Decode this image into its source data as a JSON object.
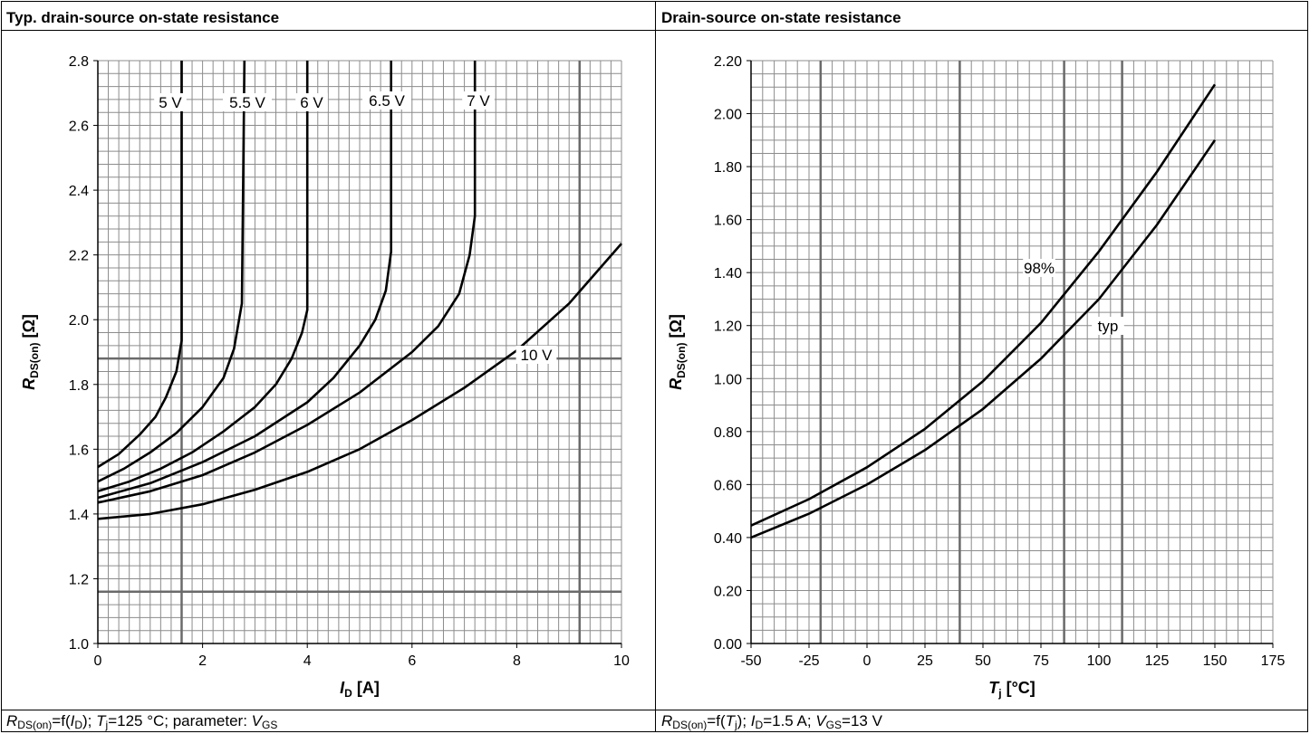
{
  "panels": [
    {
      "title": "Typ. drain-source on-state resistance",
      "caption": {
        "r_sym": "R",
        "r_sub": "DS(on)",
        "f_open": "=f(",
        "arg_sym": "I",
        "arg_sub": "D",
        "rest1": "); ",
        "t_sym": "T",
        "t_sub": "j",
        "rest2": "=125 °C; parameter: ",
        "v_sym": "V",
        "v_sub": "GS"
      }
    },
    {
      "title": "Drain-source on-state resistance",
      "caption": {
        "r_sym": "R",
        "r_sub": "DS(on)",
        "f_open": "=f(",
        "arg_sym": "T",
        "arg_sub": "j",
        "rest1": "); ",
        "i_sym": "I",
        "i_sub": "D",
        "rest2": "=1.5 A; ",
        "v_sym": "V",
        "v_sub": "GS",
        "rest3": "=13 V"
      }
    }
  ],
  "chart_data": [
    {
      "type": "line",
      "title": "Typ. drain-source on-state resistance",
      "xlabel": {
        "sym": "I",
        "sub": "D",
        "unit": " [A]"
      },
      "ylabel": {
        "sym": "R",
        "sub": "DS(on)",
        "unit": " [Ω]"
      },
      "xlim": [
        0,
        10
      ],
      "ylim": [
        1.0,
        2.8
      ],
      "x_ticks": [
        0,
        2,
        4,
        6,
        8,
        10
      ],
      "y_ticks": [
        "1.0",
        "1.2",
        "1.4",
        "1.6",
        "1.8",
        "2.0",
        "2.2",
        "2.4",
        "2.6",
        "2.8"
      ],
      "grid": true,
      "series": [
        {
          "name": "5 V",
          "points": [
            [
              0,
              1.545
            ],
            [
              0.4,
              1.585
            ],
            [
              0.8,
              1.645
            ],
            [
              1.1,
              1.7
            ],
            [
              1.3,
              1.76
            ],
            [
              1.5,
              1.84
            ],
            [
              1.6,
              1.935
            ],
            [
              1.6,
              2.8
            ]
          ]
        },
        {
          "name": "5.5 V",
          "points": [
            [
              0,
              1.5
            ],
            [
              0.5,
              1.54
            ],
            [
              1.0,
              1.59
            ],
            [
              1.5,
              1.65
            ],
            [
              2.0,
              1.73
            ],
            [
              2.4,
              1.82
            ],
            [
              2.6,
              1.91
            ],
            [
              2.75,
              2.05
            ],
            [
              2.8,
              2.8
            ]
          ]
        },
        {
          "name": "6 V",
          "points": [
            [
              0,
              1.47
            ],
            [
              0.6,
              1.5
            ],
            [
              1.2,
              1.54
            ],
            [
              1.8,
              1.59
            ],
            [
              2.4,
              1.655
            ],
            [
              3.0,
              1.73
            ],
            [
              3.4,
              1.8
            ],
            [
              3.7,
              1.88
            ],
            [
              3.9,
              1.96
            ],
            [
              4.0,
              2.03
            ],
            [
              4.0,
              2.8
            ]
          ]
        },
        {
          "name": "6.5 V",
          "points": [
            [
              0,
              1.45
            ],
            [
              1.0,
              1.495
            ],
            [
              2.0,
              1.56
            ],
            [
              3.0,
              1.64
            ],
            [
              4.0,
              1.745
            ],
            [
              4.5,
              1.82
            ],
            [
              5.0,
              1.92
            ],
            [
              5.3,
              2.0
            ],
            [
              5.5,
              2.09
            ],
            [
              5.6,
              2.21
            ],
            [
              5.6,
              2.8
            ]
          ]
        },
        {
          "name": "7 V",
          "points": [
            [
              0,
              1.435
            ],
            [
              1.0,
              1.47
            ],
            [
              2.0,
              1.52
            ],
            [
              3.0,
              1.59
            ],
            [
              4.0,
              1.675
            ],
            [
              5.0,
              1.775
            ],
            [
              6.0,
              1.9
            ],
            [
              6.5,
              1.98
            ],
            [
              6.9,
              2.08
            ],
            [
              7.1,
              2.2
            ],
            [
              7.2,
              2.32
            ],
            [
              7.2,
              2.8
            ]
          ]
        },
        {
          "name": "10 V",
          "points": [
            [
              0,
              1.385
            ],
            [
              1.0,
              1.4
            ],
            [
              2.0,
              1.43
            ],
            [
              3.0,
              1.475
            ],
            [
              4.0,
              1.53
            ],
            [
              5.0,
              1.6
            ],
            [
              6.0,
              1.69
            ],
            [
              7.0,
              1.79
            ],
            [
              8.0,
              1.905
            ],
            [
              9.0,
              2.05
            ],
            [
              10.0,
              2.235
            ]
          ]
        }
      ],
      "annotations": [
        "5 V",
        "5.5 V",
        "6 V",
        "6.5 V",
        "7 V",
        "10 V"
      ]
    },
    {
      "type": "line",
      "title": "Drain-source on-state resistance",
      "xlabel": {
        "sym": "T",
        "sub": "j",
        "unit": " [°C]"
      },
      "ylabel": {
        "sym": "R",
        "sub": "DS(on)",
        "unit": " [Ω]"
      },
      "xlim": [
        -50,
        175
      ],
      "ylim": [
        0,
        2.2
      ],
      "x_ticks": [
        "-50",
        "-25",
        "0",
        "25",
        "50",
        "75",
        "100",
        "125",
        "150",
        "175"
      ],
      "y_ticks": [
        "0.00",
        "0.20",
        "0.40",
        "0.60",
        "0.80",
        "1.00",
        "1.20",
        "1.40",
        "1.60",
        "1.80",
        "2.00",
        "2.20"
      ],
      "grid": true,
      "series": [
        {
          "name": "98%",
          "points": [
            [
              -50,
              0.445
            ],
            [
              -25,
              0.545
            ],
            [
              0,
              0.665
            ],
            [
              25,
              0.81
            ],
            [
              50,
              0.99
            ],
            [
              75,
              1.21
            ],
            [
              100,
              1.48
            ],
            [
              125,
              1.78
            ],
            [
              150,
              2.11
            ]
          ]
        },
        {
          "name": "typ",
          "points": [
            [
              -50,
              0.4
            ],
            [
              -25,
              0.49
            ],
            [
              0,
              0.6
            ],
            [
              25,
              0.73
            ],
            [
              50,
              0.885
            ],
            [
              75,
              1.075
            ],
            [
              100,
              1.3
            ],
            [
              125,
              1.58
            ],
            [
              150,
              1.9
            ]
          ]
        }
      ],
      "annotations": [
        "98%",
        "typ"
      ]
    }
  ]
}
